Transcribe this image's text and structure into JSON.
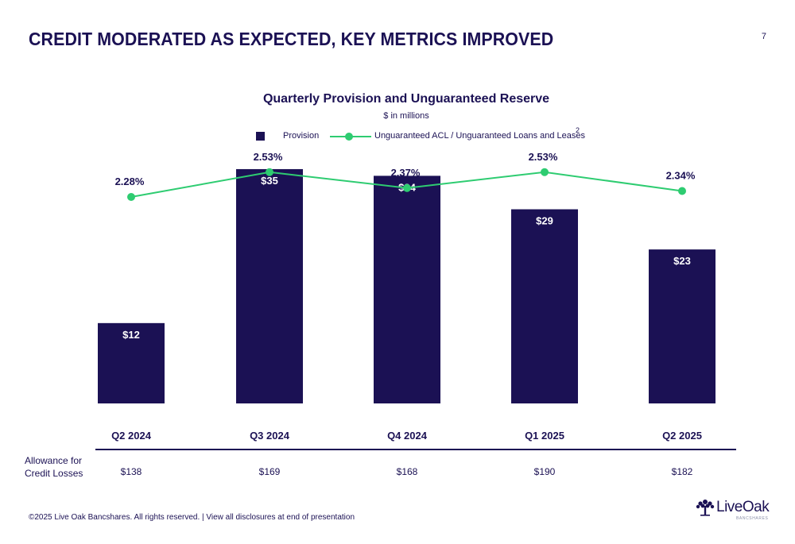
{
  "slide": {
    "title": "CREDIT MODERATED AS EXPECTED, KEY METRICS IMPROVED",
    "page_number": "7",
    "footer": "©2025 Live Oak Bancshares. All rights reserved.  |  View all disclosures at end of presentation"
  },
  "logo": {
    "name": "LiveOak",
    "sub": "BANCSHARES",
    "icon": "oak-tree-icon"
  },
  "colors": {
    "navy": "#1b1154",
    "green": "#2ecc71",
    "white": "#ffffff"
  },
  "chart_data": {
    "type": "bar",
    "title": "Quarterly Provision and Unguaranteed Reserve",
    "subtitle": "$ in millions",
    "categories": [
      "Q2 2024",
      "Q3 2024",
      "Q4 2024",
      "Q1 2025",
      "Q2 2025"
    ],
    "legend": {
      "position": "top-center",
      "footnote": "2"
    },
    "series": [
      {
        "name": "Provision",
        "type": "bar",
        "values": [
          12,
          35,
          34,
          29,
          23
        ],
        "labels": [
          "$12",
          "$35",
          "$34",
          "$29",
          "$23"
        ],
        "color": "#1b1154"
      },
      {
        "name": "Unguaranteed ACL / Unguaranteed Loans and Leases",
        "type": "line",
        "values": [
          2.28,
          2.53,
          2.37,
          2.53,
          2.34
        ],
        "labels": [
          "2.28%",
          "2.53%",
          "2.37%",
          "2.53%",
          "2.34%"
        ],
        "color": "#2ecc71"
      }
    ],
    "table": {
      "row_label": "Allowance for Credit Losses",
      "values": [
        "$138",
        "$169",
        "$168",
        "$190",
        "$182"
      ]
    }
  }
}
